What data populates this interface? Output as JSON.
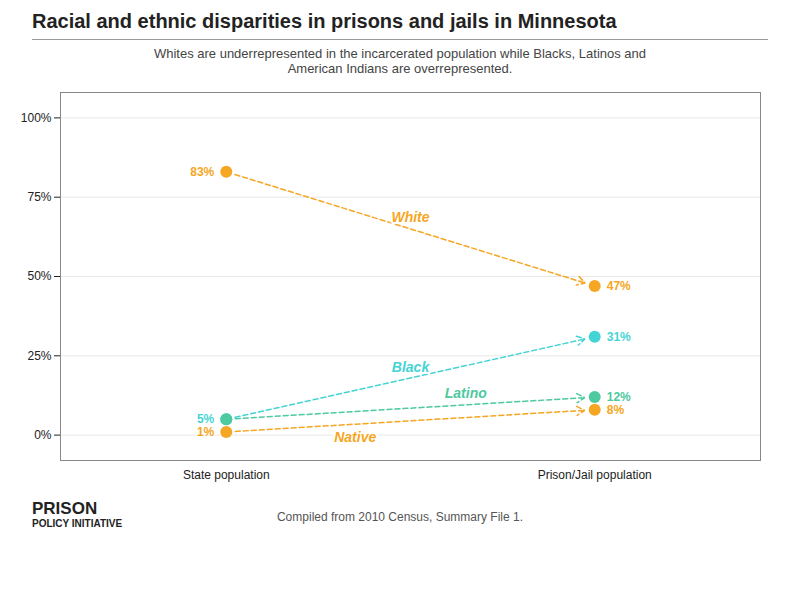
{
  "chart_data": {
    "type": "line",
    "title": "Racial and ethnic disparities in prisons and jails in Minnesota",
    "subtitle": "Whites are underrepresented in the incarcerated population while Blacks, Latinos and\nAmerican Indians are overrepresented.",
    "categories": [
      "State population",
      "Prison/Jail population"
    ],
    "series": [
      {
        "name": "White",
        "color": "#f5a623",
        "values": [
          83,
          47
        ],
        "value_labels": [
          "83%",
          "47%"
        ]
      },
      {
        "name": "Black",
        "color": "#45d4d4",
        "values": [
          5,
          31
        ],
        "value_labels": [
          "5%",
          "31%"
        ]
      },
      {
        "name": "Latino",
        "color": "#4ec9a0",
        "values": [
          5,
          12
        ],
        "value_labels": [
          null,
          "12%"
        ]
      },
      {
        "name": "Native",
        "color": "#f5a623",
        "values": [
          1,
          8
        ],
        "value_labels": [
          "1%",
          "8%"
        ]
      }
    ],
    "ylim": [
      -8,
      108
    ],
    "yticks": [
      {
        "value": 0,
        "label": "0%"
      },
      {
        "value": 25,
        "label": "25%"
      },
      {
        "value": 50,
        "label": "50%"
      },
      {
        "value": 75,
        "label": "75%"
      },
      {
        "value": 100,
        "label": "100%"
      }
    ],
    "grid": true,
    "data_labels": true,
    "marker": "circle",
    "line_style": "dashed",
    "annotations": [
      "PRISON",
      "POLICY INITIATIVE"
    ],
    "caption": "Compiled from 2010 Census, Summary File 1."
  }
}
